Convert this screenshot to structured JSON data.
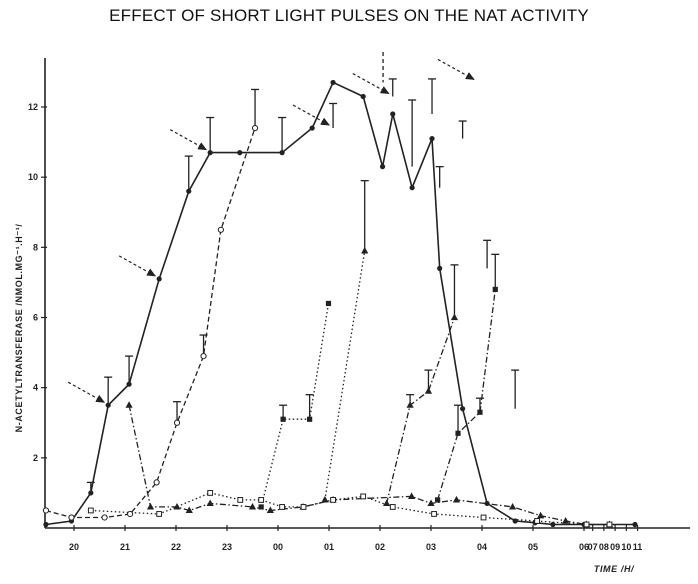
{
  "title": "EFFECT OF SHORT LIGHT PULSES ON THE NAT ACTIVITY",
  "chart_data": {
    "type": "line",
    "title": "EFFECT OF SHORT LIGHT PULSES ON THE NAT ACTIVITY",
    "xlabel": "TIME /H/",
    "ylabel": "N-ACETYLTRANSFERASE /NMOL.MG⁻¹.H⁻¹/",
    "x_ticks": [
      "20",
      "21",
      "22",
      "23",
      "00",
      "01",
      "02",
      "03",
      "04",
      "05",
      "06",
      "07",
      "08",
      "09",
      "10",
      "11"
    ],
    "x_tick_positions": [
      0,
      1,
      2,
      3,
      4,
      5,
      6,
      7,
      8,
      9,
      10,
      10.17,
      10.39,
      10.61,
      10.83,
      11.05
    ],
    "y_ticks": [
      "2",
      "4",
      "6",
      "8",
      "10",
      "12"
    ],
    "y_tick_values": [
      2,
      4,
      6,
      8,
      10,
      12
    ],
    "ylim": [
      0,
      13.4
    ],
    "xlim": [
      -0.55,
      11.2
    ],
    "series": [
      {
        "style": "solid",
        "marker": "dot",
        "x": [
          -0.55,
          -0.05,
          0.33,
          0.67,
          1.08,
          1.67,
          2.25,
          2.67,
          3.25,
          4.08,
          4.67,
          5.08,
          5.67,
          6.05,
          6.25,
          6.63,
          7.02,
          7.17,
          7.62,
          8.1,
          8.65,
          9.04,
          9.39,
          10.0,
          10.5,
          11.0
        ],
        "y": [
          0.1,
          0.2,
          1.0,
          3.5,
          4.1,
          7.1,
          9.6,
          10.7,
          10.7,
          10.7,
          11.4,
          12.7,
          12.3,
          10.3,
          11.8,
          9.7,
          11.1,
          7.4,
          3.4,
          0.7,
          0.2,
          0.15,
          0.1,
          0.1,
          0.1,
          0.1
        ]
      },
      {
        "style": "dashed",
        "marker": "open-circle",
        "x": [
          -0.55,
          -0.05,
          0.6,
          1.1,
          1.62,
          2.02,
          2.54,
          2.88,
          3.55
        ],
        "y": [
          0.5,
          0.3,
          0.3,
          0.4,
          1.3,
          3.0,
          4.9,
          8.5,
          11.4
        ]
      },
      {
        "style": "dotted",
        "marker": "filled-square",
        "x": [
          3.67,
          4.1,
          4.62,
          4.99
        ],
        "y": [
          0.6,
          3.1,
          3.1,
          6.4
        ]
      },
      {
        "style": "dotted",
        "marker": "filled-triangle",
        "x": [
          4.92,
          5.7
        ],
        "y": [
          0.8,
          7.9
        ]
      },
      {
        "style": "dash-dot",
        "marker": "filled-triangle",
        "x": [
          6.13,
          6.59,
          6.95,
          7.46
        ],
        "y": [
          0.7,
          3.5,
          3.9,
          6.0
        ]
      },
      {
        "style": "dash-dot",
        "marker": "filled-square",
        "x": [
          7.13,
          7.53,
          7.96,
          8.26
        ],
        "y": [
          0.8,
          2.7,
          3.3,
          6.8
        ]
      },
      {
        "style": "dash-dot",
        "marker": "filled-triangle",
        "x": [
          1.08,
          1.5,
          2.02,
          2.26,
          2.67,
          3.5,
          3.85,
          4.49,
          5.08,
          6.62,
          7.0,
          7.5,
          8.6,
          9.15,
          9.64,
          10.05,
          10.5
        ],
        "y": [
          3.5,
          0.6,
          0.6,
          0.5,
          0.7,
          0.6,
          0.5,
          0.6,
          0.8,
          0.9,
          0.7,
          0.8,
          0.6,
          0.35,
          0.2,
          0.1,
          0.1
        ]
      },
      {
        "style": "dotted",
        "marker": "open-square",
        "x": [
          0.33,
          1.67,
          2.67,
          3.26,
          3.67,
          4.08,
          4.5,
          5.08,
          5.67,
          6.25,
          7.06,
          8.03,
          9.08,
          10.05,
          10.5
        ],
        "y": [
          0.5,
          0.4,
          1.0,
          0.8,
          0.8,
          0.6,
          0.6,
          0.8,
          0.9,
          0.6,
          0.4,
          0.3,
          0.2,
          0.1,
          0.1
        ]
      }
    ],
    "error_bars": [
      {
        "x": 0.67,
        "y": 3.5,
        "top": 4.3
      },
      {
        "x": 1.08,
        "y": 4.1,
        "top": 4.9
      },
      {
        "x": 2.25,
        "y": 9.6,
        "top": 10.6
      },
      {
        "x": 2.67,
        "y": 10.7,
        "top": 11.7
      },
      {
        "x": 4.08,
        "y": 10.7,
        "top": 11.7
      },
      {
        "x": 5.08,
        "y": 11.4,
        "top": 12.1
      },
      {
        "x": 6.25,
        "y": 12.3,
        "top": 12.8
      },
      {
        "x": 6.63,
        "y": 10.3,
        "top": 12.2
      },
      {
        "x": 7.02,
        "y": 11.8,
        "top": 12.8
      },
      {
        "x": 7.17,
        "y": 9.7,
        "top": 10.3
      },
      {
        "x": 7.62,
        "y": 11.1,
        "top": 11.6
      },
      {
        "x": 8.1,
        "y": 7.4,
        "top": 8.2
      },
      {
        "x": 8.65,
        "y": 3.4,
        "top": 4.5
      },
      {
        "x": 0.33,
        "y": 1.0,
        "top": 1.3
      },
      {
        "x": 2.02,
        "y": 3.0,
        "top": 3.6
      },
      {
        "x": 2.54,
        "y": 4.9,
        "top": 5.5
      },
      {
        "x": 3.55,
        "y": 11.4,
        "top": 12.5
      },
      {
        "x": 4.1,
        "y": 3.1,
        "top": 3.5
      },
      {
        "x": 4.62,
        "y": 3.1,
        "top": 3.8
      },
      {
        "x": 5.7,
        "y": 7.9,
        "top": 9.9
      },
      {
        "x": 6.59,
        "y": 3.5,
        "top": 3.8
      },
      {
        "x": 6.95,
        "y": 3.9,
        "top": 4.5
      },
      {
        "x": 7.46,
        "y": 6.0,
        "top": 7.5
      },
      {
        "x": 7.53,
        "y": 2.7,
        "top": 3.5
      },
      {
        "x": 7.96,
        "y": 3.3,
        "top": 3.7
      },
      {
        "x": 8.26,
        "y": 6.8,
        "top": 7.8
      }
    ],
    "light_pulse_arrows": [
      {
        "x": 0.67,
        "y": 3.5
      },
      {
        "x": 1.67,
        "y": 7.1
      },
      {
        "x": 2.67,
        "y": 10.7
      },
      {
        "x": 5.08,
        "y": 11.4
      },
      {
        "x": 6.25,
        "y": 12.3
      },
      {
        "x": 7.92,
        "y": 12.7
      }
    ],
    "grid": false,
    "legend": "none"
  }
}
